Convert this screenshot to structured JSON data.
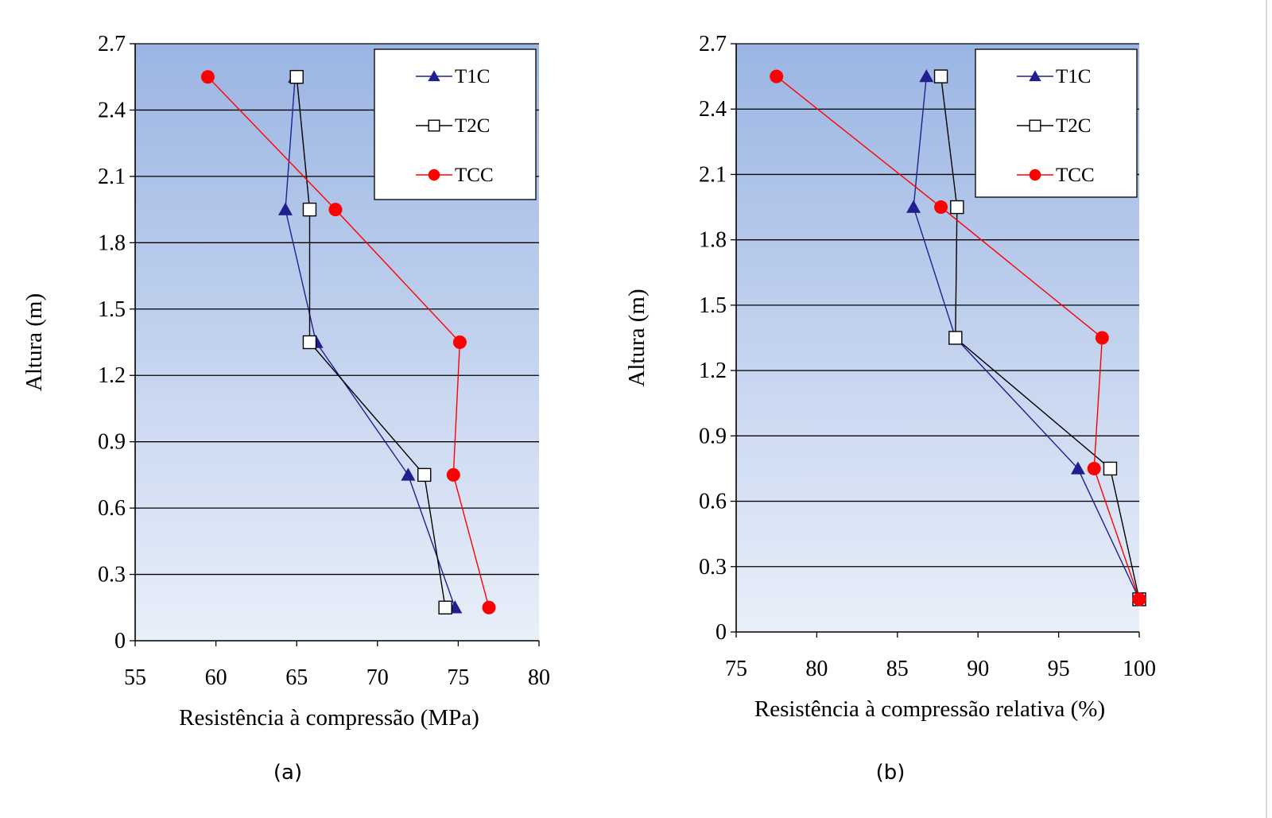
{
  "chart_data": [
    {
      "type": "line",
      "orientation": "y-vertical-height",
      "caption": "(a)",
      "xlabel": "Resistência à compressão (MPa)",
      "ylabel": "Altura (m)",
      "xlim": [
        55,
        80
      ],
      "ylim": [
        0,
        2.7
      ],
      "xticks": [
        "55",
        "60",
        "65",
        "70",
        "75",
        "80"
      ],
      "yticks": [
        "0",
        "0.3",
        "0.6",
        "0.9",
        "1.2",
        "1.5",
        "1.8",
        "2.1",
        "2.4",
        "2.7"
      ],
      "grid": "horizontal",
      "legend_position": "top-right",
      "series": [
        {
          "name": "T1C",
          "color": "#1f1f8f",
          "marker": "triangle",
          "points": [
            [
              74.8,
              0.15
            ],
            [
              71.9,
              0.75
            ],
            [
              66.2,
              1.35
            ],
            [
              64.3,
              1.95
            ],
            [
              64.9,
              2.55
            ]
          ]
        },
        {
          "name": "T2C",
          "color": "#000000",
          "marker": "square",
          "points": [
            [
              74.2,
              0.15
            ],
            [
              72.9,
              0.75
            ],
            [
              65.8,
              1.35
            ],
            [
              65.8,
              1.95
            ],
            [
              65.0,
              2.55
            ]
          ]
        },
        {
          "name": "TCC",
          "color": "#ff0000",
          "marker": "circle",
          "points": [
            [
              76.9,
              0.15
            ],
            [
              74.7,
              0.75
            ],
            [
              75.1,
              1.35
            ],
            [
              67.4,
              1.95
            ],
            [
              59.5,
              2.55
            ]
          ]
        }
      ]
    },
    {
      "type": "line",
      "orientation": "y-vertical-height",
      "caption": "(b)",
      "xlabel": "Resistência à compressão relativa (%)",
      "ylabel": "Altura (m)",
      "xlim": [
        75,
        100
      ],
      "ylim": [
        0,
        2.7
      ],
      "xticks": [
        "75",
        "80",
        "85",
        "90",
        "95",
        "100"
      ],
      "yticks": [
        "0",
        "0.3",
        "0.6",
        "0.9",
        "1.2",
        "1.5",
        "1.8",
        "2.1",
        "2.4",
        "2.7"
      ],
      "grid": "horizontal",
      "legend_position": "top-right",
      "series": [
        {
          "name": "T1C",
          "color": "#1f1f8f",
          "marker": "triangle",
          "points": [
            [
              100,
              0.15
            ],
            [
              96.2,
              0.75
            ],
            [
              88.6,
              1.35
            ],
            [
              86.0,
              1.95
            ],
            [
              86.8,
              2.55
            ]
          ]
        },
        {
          "name": "T2C",
          "color": "#000000",
          "marker": "square",
          "points": [
            [
              100,
              0.15
            ],
            [
              98.2,
              0.75
            ],
            [
              88.6,
              1.35
            ],
            [
              88.7,
              1.95
            ],
            [
              87.7,
              2.55
            ]
          ]
        },
        {
          "name": "TCC",
          "color": "#ff0000",
          "marker": "circle",
          "points": [
            [
              100,
              0.15
            ],
            [
              97.2,
              0.75
            ],
            [
              97.7,
              1.35
            ],
            [
              87.7,
              1.95
            ],
            [
              77.5,
              2.55
            ]
          ]
        }
      ]
    }
  ]
}
